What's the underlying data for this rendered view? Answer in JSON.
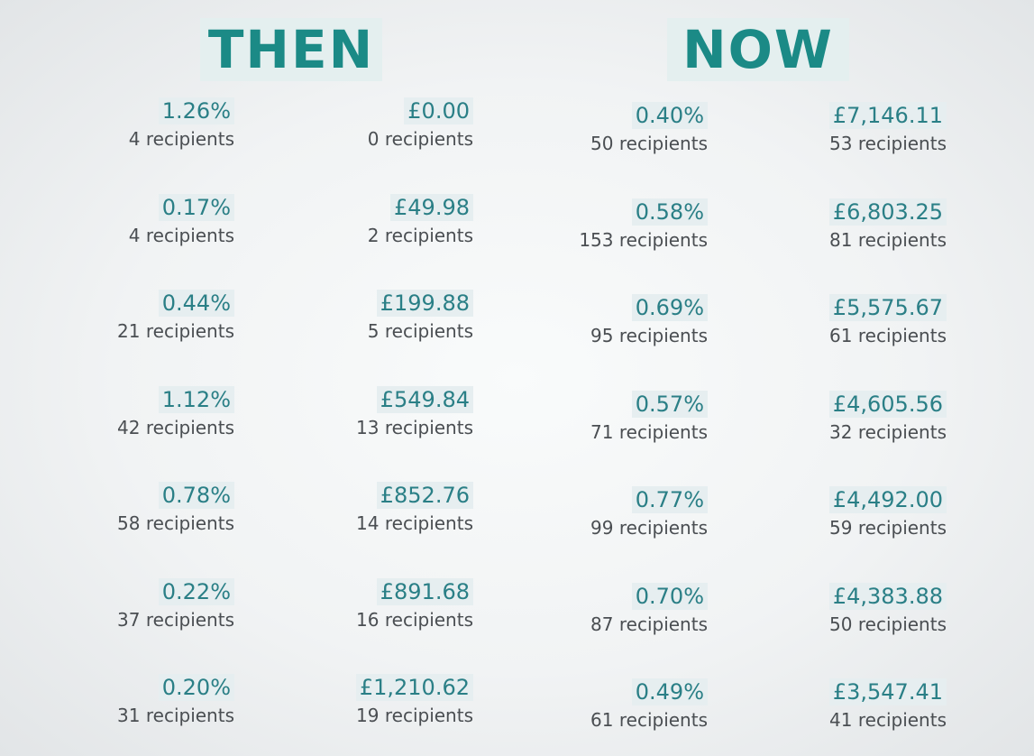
{
  "headings": {
    "then": "THEN",
    "now": "NOW"
  },
  "then_percent": [
    {
      "value": "1.26%",
      "count": "4 recipients"
    },
    {
      "value": "0.17%",
      "count": "4 recipients"
    },
    {
      "value": "0.44%",
      "count": "21 recipients"
    },
    {
      "value": "1.12%",
      "count": "42 recipients"
    },
    {
      "value": "0.78%",
      "count": "58 recipients"
    },
    {
      "value": "0.22%",
      "count": "37 recipients"
    },
    {
      "value": "0.20%",
      "count": "31 recipients"
    }
  ],
  "then_amount": [
    {
      "value": "£0.00",
      "count": "0 recipients"
    },
    {
      "value": "£49.98",
      "count": "2 recipients"
    },
    {
      "value": "£199.88",
      "count": "5 recipients"
    },
    {
      "value": "£549.84",
      "count": "13 recipients"
    },
    {
      "value": "£852.76",
      "count": "14 recipients"
    },
    {
      "value": "£891.68",
      "count": "16 recipients"
    },
    {
      "value": "£1,210.62",
      "count": "19 recipients"
    }
  ],
  "now_percent": [
    {
      "value": "0.40%",
      "count": "50 recipients"
    },
    {
      "value": "0.58%",
      "count": "153 recipients"
    },
    {
      "value": "0.69%",
      "count": "95 recipients"
    },
    {
      "value": "0.57%",
      "count": "71 recipients"
    },
    {
      "value": "0.77%",
      "count": "99 recipients"
    },
    {
      "value": "0.70%",
      "count": "87 recipients"
    },
    {
      "value": "0.49%",
      "count": "61 recipients"
    }
  ],
  "now_amount": [
    {
      "value": "£7,146.11",
      "count": "53 recipients"
    },
    {
      "value": "£6,803.25",
      "count": "81 recipients"
    },
    {
      "value": "£5,575.67",
      "count": "61 recipients"
    },
    {
      "value": "£4,605.56",
      "count": "32 recipients"
    },
    {
      "value": "£4,492.00",
      "count": "59 recipients"
    },
    {
      "value": "£4,383.88",
      "count": "50 recipients"
    },
    {
      "value": "£3,547.41",
      "count": "41 recipients"
    }
  ]
}
